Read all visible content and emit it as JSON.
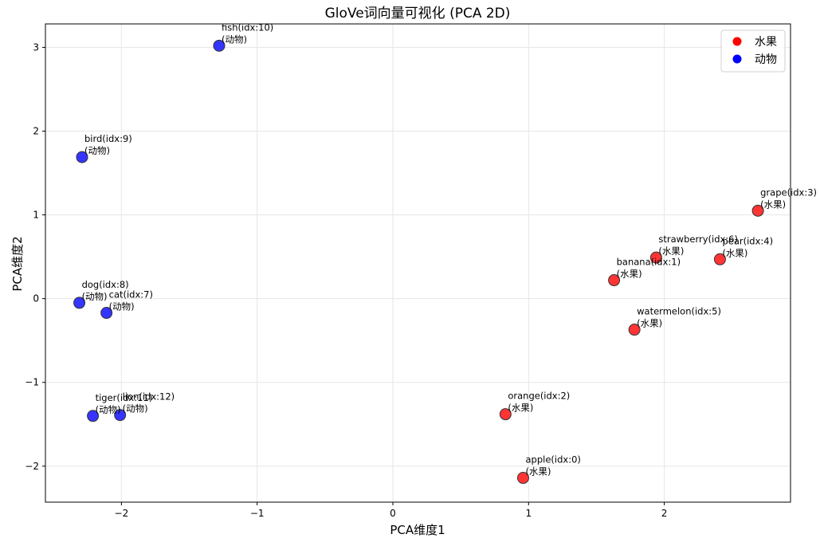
{
  "chart_data": {
    "type": "scatter",
    "title": "GloVe词向量可视化 (PCA 2D)",
    "xlabel": "PCA维度1",
    "ylabel": "PCA维度2",
    "xlim": [
      -2.56,
      2.93
    ],
    "ylim": [
      -2.43,
      3.28
    ],
    "xticks": [
      -2,
      -1,
      0,
      1,
      2
    ],
    "yticks": [
      -2,
      -1,
      0,
      1,
      2,
      3
    ],
    "grid": true,
    "legend_position": "top-right",
    "legend": [
      {
        "label": "水果",
        "color": "#ff0000"
      },
      {
        "label": "动物",
        "color": "#0000ff"
      }
    ],
    "series": [
      {
        "name": "水果",
        "color": "#ff2a2a",
        "points": [
          {
            "x": 0.96,
            "y": -2.14,
            "label": "apple(idx:0)",
            "category": "(水果)"
          },
          {
            "x": 1.63,
            "y": 0.22,
            "label": "banana(idx:1)",
            "category": "(水果)"
          },
          {
            "x": 0.83,
            "y": -1.38,
            "label": "orange(idx:2)",
            "category": "(水果)"
          },
          {
            "x": 2.69,
            "y": 1.05,
            "label": "grape(idx:3)",
            "category": "(水果)"
          },
          {
            "x": 2.41,
            "y": 0.47,
            "label": "pear(idx:4)",
            "category": "(水果)"
          },
          {
            "x": 1.78,
            "y": -0.37,
            "label": "watermelon(idx:5)",
            "category": "(水果)"
          },
          {
            "x": 1.94,
            "y": 0.49,
            "label": "strawberry(idx:6)",
            "category": "(水果)"
          }
        ]
      },
      {
        "name": "动物",
        "color": "#2a2aff",
        "points": [
          {
            "x": -2.11,
            "y": -0.17,
            "label": "cat(idx:7)",
            "category": "(动物)"
          },
          {
            "x": -2.31,
            "y": -0.05,
            "label": "dog(idx:8)",
            "category": "(动物)"
          },
          {
            "x": -2.29,
            "y": 1.69,
            "label": "bird(idx:9)",
            "category": "(动物)"
          },
          {
            "x": -1.28,
            "y": 3.02,
            "label": "fish(idx:10)",
            "category": "(动物)"
          },
          {
            "x": -2.21,
            "y": -1.4,
            "label": "tiger(idx:11)",
            "category": "(动物)"
          },
          {
            "x": -2.01,
            "y": -1.39,
            "label": "lion(idx:12)",
            "category": "(动物)"
          }
        ]
      }
    ]
  }
}
